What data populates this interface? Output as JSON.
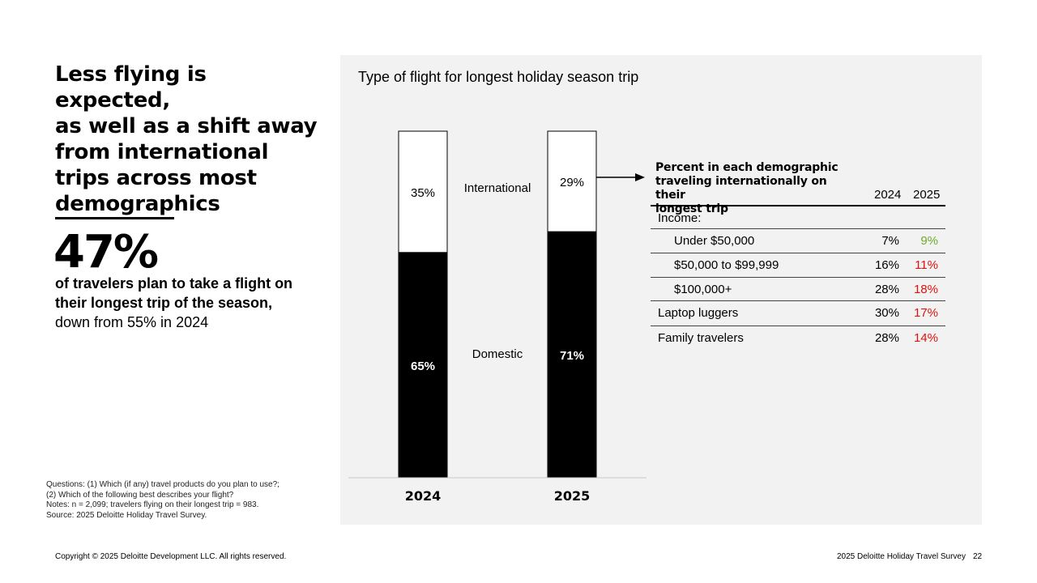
{
  "headline": [
    "Less flying is expected,",
    "as well as a shift away",
    "from international",
    "trips across most",
    "demographics"
  ],
  "stat": {
    "value": "47%",
    "text_bold": "of travelers plan to take a flight on their longest trip of the season,",
    "text_normal": "down from 55% in 2024"
  },
  "notes": [
    "Questions: (1) Which (if any) travel products do you plan to use?;",
    "(2) Which of the following best describes your flight?",
    "Notes: n = 2,099; travelers flying on their longest trip = 983.",
    "Source: 2025 Deloitte Holiday Travel Survey."
  ],
  "chart_data": {
    "type": "bar",
    "stacked": true,
    "percent": true,
    "title": "Type of flight for longest holiday season trip",
    "categories": [
      "2024",
      "2025"
    ],
    "series": [
      {
        "name": "Domestic",
        "values": [
          65,
          71
        ],
        "labels": [
          "65%",
          "71%"
        ],
        "color": "#000000",
        "label_color": "#ffffff"
      },
      {
        "name": "International",
        "values": [
          35,
          29
        ],
        "labels": [
          "35%",
          "29%"
        ],
        "color": "#ffffff",
        "label_color": "#000000"
      }
    ],
    "ylim": [
      0,
      100
    ]
  },
  "table": {
    "title": [
      "Percent in each demographic",
      "traveling internationally on their",
      "longest trip"
    ],
    "col_2024": "2024",
    "col_2025": "2025",
    "section_label": "Income:",
    "rows": [
      {
        "label": "Under $50,000",
        "v2024": "7%",
        "v2025": "9%",
        "color2025": "#70a92a",
        "indent": true
      },
      {
        "label": "$50,000 to $99,999",
        "v2024": "16%",
        "v2025": "11%",
        "color2025": "#e0110d",
        "indent": true
      },
      {
        "label": "$100,000+",
        "v2024": "28%",
        "v2025": "18%",
        "color2025": "#e0110d",
        "indent": true
      },
      {
        "label": "Laptop luggers",
        "v2024": "30%",
        "v2025": "17%",
        "color2025": "#e0110d",
        "indent": false
      },
      {
        "label": "Family travelers",
        "v2024": "28%",
        "v2025": "14%",
        "color2025": "#e0110d",
        "indent": false
      }
    ]
  },
  "footer": {
    "copyright": "Copyright © 2025 Deloitte Development LLC. All rights reserved.",
    "survey": "2025 Deloitte Holiday Travel Survey",
    "page": "22"
  }
}
